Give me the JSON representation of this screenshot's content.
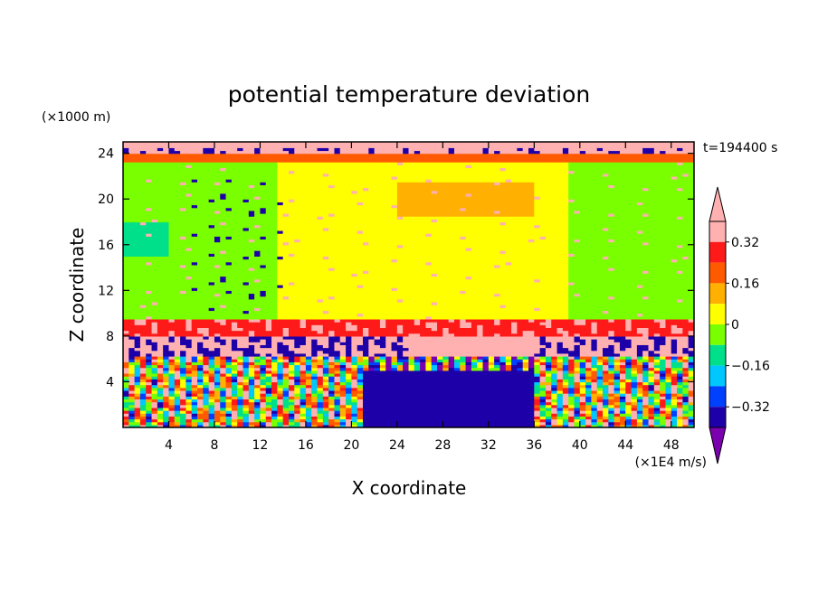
{
  "chart_data": {
    "type": "heatmap",
    "title": "potential temperature deviation",
    "xlabel": "X coordinate",
    "ylabel": "Z coordinate",
    "x_unit": "(×1E4 m/s)",
    "y_unit": "(×1000 m)",
    "time_label": "t=194400 s",
    "xlim": [
      0,
      50
    ],
    "ylim": [
      0,
      25
    ],
    "x_ticks": [
      4,
      8,
      12,
      16,
      20,
      24,
      28,
      32,
      36,
      40,
      44,
      48
    ],
    "y_ticks": [
      4,
      8,
      12,
      16,
      20,
      24
    ],
    "colorbar": {
      "levels": [
        -0.4,
        -0.32,
        -0.24,
        -0.16,
        -0.08,
        0,
        0.08,
        0.16,
        0.24,
        0.32,
        0.4
      ],
      "colors": [
        "#7b00b0",
        "#1e00a8",
        "#0040ff",
        "#00c8ff",
        "#00e08a",
        "#79ff00",
        "#ffff00",
        "#ffb000",
        "#ff5a00",
        "#ff1a1a",
        "#ffb0b0",
        "#ffb0b0"
      ],
      "tick_labels": [
        "0.32",
        "0.16",
        "0",
        "−0.16",
        "−0.32"
      ],
      "tick_values": [
        0.32,
        0.16,
        0,
        -0.16,
        -0.32
      ]
    }
  }
}
